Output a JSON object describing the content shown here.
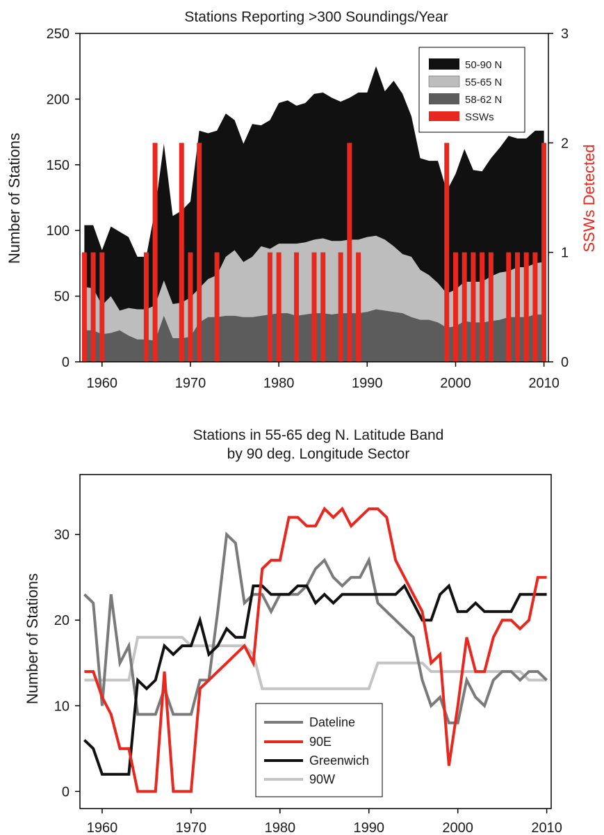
{
  "chart_data": [
    {
      "type": "area",
      "title": "Stations Reporting >300 Soundings/Year",
      "xlabel": "",
      "ylabel": "Number of Stations",
      "y2label": "SSWs Detected",
      "xlim": [
        1957.5,
        2010.5
      ],
      "ylim": [
        0,
        250
      ],
      "y2lim": [
        0,
        3
      ],
      "xticks": [
        1960,
        1970,
        1980,
        1990,
        2000,
        2010
      ],
      "yticks": [
        0,
        50,
        100,
        150,
        200,
        250
      ],
      "y2ticks": [
        0,
        1,
        2,
        3
      ],
      "legend_position": "top-right",
      "grid": false,
      "x": [
        1958,
        1959,
        1960,
        1961,
        1962,
        1963,
        1964,
        1965,
        1966,
        1967,
        1968,
        1969,
        1970,
        1971,
        1972,
        1973,
        1974,
        1975,
        1976,
        1977,
        1978,
        1979,
        1980,
        1981,
        1982,
        1983,
        1984,
        1985,
        1986,
        1987,
        1988,
        1989,
        1990,
        1991,
        1992,
        1993,
        1994,
        1995,
        1996,
        1997,
        1998,
        1999,
        2000,
        2001,
        2002,
        2003,
        2004,
        2005,
        2006,
        2007,
        2008,
        2009,
        2010
      ],
      "series": [
        {
          "name": "50-90 N",
          "color": "#111111",
          "values": [
            104,
            104,
            85,
            103,
            99,
            95,
            80,
            80,
            116,
            166,
            111,
            115,
            122,
            176,
            174,
            176,
            189,
            184,
            166,
            181,
            180,
            184,
            197,
            199,
            195,
            197,
            204,
            205,
            201,
            198,
            201,
            205,
            205,
            225,
            206,
            214,
            204,
            187,
            155,
            153,
            153,
            130,
            143,
            162,
            146,
            145,
            155,
            163,
            172,
            170,
            170,
            176,
            176
          ]
        },
        {
          "name": "55-65 N",
          "color": "#bdbdbd",
          "values": [
            57,
            56,
            43,
            50,
            39,
            41,
            40,
            40,
            43,
            62,
            44,
            45,
            49,
            56,
            63,
            66,
            80,
            85,
            76,
            80,
            88,
            86,
            90,
            90,
            90,
            91,
            93,
            94,
            92,
            92,
            93,
            93,
            95,
            96,
            93,
            88,
            82,
            80,
            70,
            66,
            60,
            52,
            55,
            61,
            61,
            61,
            65,
            68,
            69,
            72,
            72,
            75,
            76
          ]
        },
        {
          "name": "58-62 N",
          "color": "#5c5c5c",
          "values": [
            24,
            24,
            21,
            22,
            24,
            20,
            17,
            17,
            16,
            35,
            18,
            18,
            19,
            30,
            34,
            34,
            35,
            35,
            34,
            34,
            35,
            36,
            37,
            37,
            35,
            36,
            37,
            37,
            36,
            37,
            37,
            37,
            38,
            40,
            39,
            38,
            37,
            34,
            32,
            32,
            30,
            26,
            27,
            31,
            30,
            30,
            31,
            32,
            34,
            34,
            34,
            36,
            36
          ]
        }
      ],
      "ssw": {
        "name": "SSWs",
        "color": "#e8281e",
        "x": [
          1958,
          1959,
          1960,
          1965,
          1966,
          1969,
          1970,
          1971,
          1973,
          1979,
          1980,
          1982,
          1984,
          1985,
          1987,
          1988,
          1989,
          1999,
          2000,
          2001,
          2002,
          2003,
          2004,
          2006,
          2007,
          2008,
          2009,
          2010
        ],
        "values": [
          1,
          1,
          1,
          1,
          2,
          2,
          1,
          2,
          1,
          1,
          1,
          1,
          1,
          1,
          1,
          2,
          1,
          2,
          1,
          1,
          1,
          1,
          1,
          1,
          1,
          1,
          1,
          2
        ]
      }
    },
    {
      "type": "line",
      "title": "Stations in 55-65 deg N. Latitude Band",
      "subtitle": "by 90 deg. Longitude Sector",
      "xlabel": "",
      "ylabel": "Number of Stations",
      "xlim": [
        1957.5,
        2010.5
      ],
      "ylim": [
        -2,
        37
      ],
      "xticks": [
        1960,
        1970,
        1980,
        1990,
        2000,
        2010
      ],
      "yticks": [
        0,
        10,
        20,
        30
      ],
      "legend_position": "bottom-center",
      "grid": false,
      "x": [
        1958,
        1959,
        1960,
        1961,
        1962,
        1963,
        1964,
        1965,
        1966,
        1967,
        1968,
        1969,
        1970,
        1971,
        1972,
        1973,
        1974,
        1975,
        1976,
        1977,
        1978,
        1979,
        1980,
        1981,
        1982,
        1983,
        1984,
        1985,
        1986,
        1987,
        1988,
        1989,
        1990,
        1991,
        1992,
        1993,
        1994,
        1995,
        1996,
        1997,
        1998,
        1999,
        2000,
        2001,
        2002,
        2003,
        2004,
        2005,
        2006,
        2007,
        2008,
        2009,
        2010
      ],
      "series": [
        {
          "name": "Dateline",
          "color": "#7a7a7a",
          "values": [
            23,
            22,
            10,
            23,
            15,
            17,
            9,
            9,
            9,
            12,
            9,
            9,
            9,
            13,
            13,
            21,
            30,
            29,
            22,
            23,
            23,
            21,
            23,
            23,
            23,
            24,
            26,
            27,
            25,
            24,
            25,
            25,
            27,
            22,
            21,
            20,
            19,
            18,
            13,
            10,
            11,
            8,
            8,
            13,
            11,
            10,
            13,
            14,
            14,
            13,
            14,
            14,
            13
          ]
        },
        {
          "name": "90E",
          "color": "#e8281e",
          "values": [
            14,
            14,
            11,
            9,
            5,
            5,
            0,
            0,
            0,
            14,
            0,
            0,
            0,
            12,
            13,
            14,
            15,
            16,
            17,
            15,
            26,
            27,
            27,
            32,
            32,
            31,
            31,
            33,
            32,
            33,
            31,
            32,
            33,
            33,
            32,
            27,
            25,
            23,
            21,
            15,
            16,
            3,
            10,
            18,
            14,
            14,
            18,
            20,
            20,
            19,
            20,
            25,
            25
          ]
        },
        {
          "name": "Greenwich",
          "color": "#111111",
          "values": [
            6,
            5,
            2,
            2,
            2,
            2,
            13,
            12,
            13,
            17,
            16,
            17,
            17,
            20,
            16,
            17,
            19,
            18,
            18,
            24,
            24,
            23,
            23,
            23,
            24,
            24,
            22,
            23,
            22,
            23,
            23,
            23,
            23,
            23,
            23,
            23,
            24,
            22,
            20,
            20,
            23,
            24,
            21,
            21,
            22,
            21,
            21,
            21,
            21,
            23,
            23,
            23,
            23
          ]
        },
        {
          "name": "90W",
          "color": "#c4c4c4",
          "values": [
            13,
            13,
            13,
            13,
            13,
            13,
            18,
            18,
            18,
            18,
            18,
            18,
            17,
            17,
            17,
            17,
            17,
            17,
            17,
            16,
            12,
            12,
            12,
            12,
            12,
            12,
            12,
            12,
            12,
            12,
            12,
            12,
            12,
            15,
            15,
            15,
            15,
            15,
            15,
            14,
            14,
            14,
            14,
            14,
            14,
            14,
            14,
            14,
            14,
            14,
            13,
            13,
            13
          ]
        }
      ]
    }
  ]
}
